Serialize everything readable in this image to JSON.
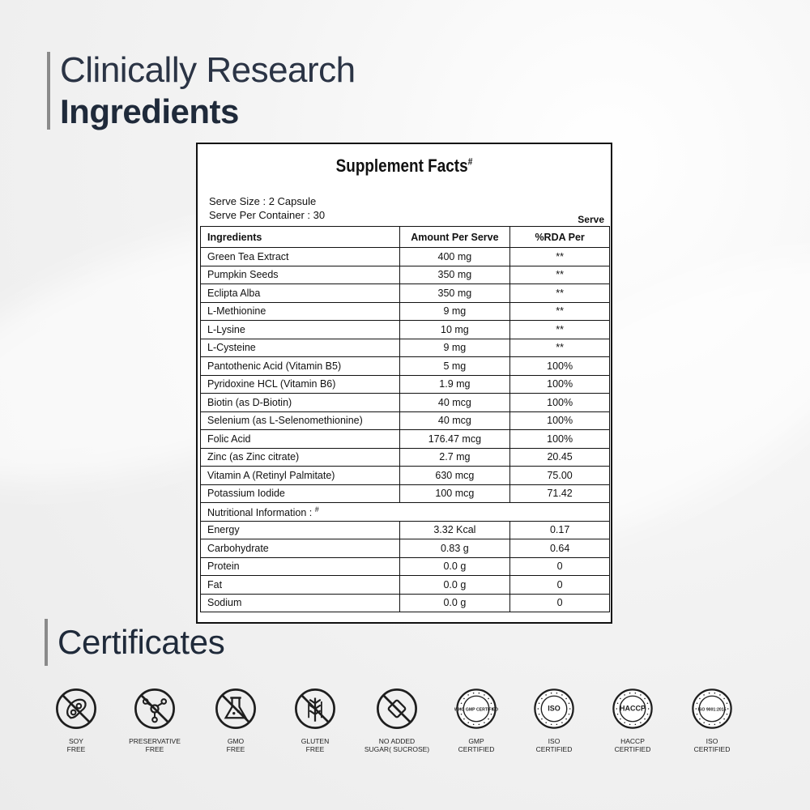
{
  "heading": {
    "line1": "Clinically Research",
    "line2": "Ingredients"
  },
  "supplement_facts": {
    "title": "Supplement Facts",
    "title_mark": "#",
    "serve_size": "Serve Size : 2 Capsule",
    "serve_per_container": "Serve Per Container : 30",
    "columns": [
      "Ingredients",
      "Amount Per Serve",
      "%RDA Per",
      "Serve"
    ],
    "ingredients": [
      {
        "name": "Green Tea Extract",
        "amount": "400 mg",
        "rda": "**"
      },
      {
        "name": "Pumpkin Seeds",
        "amount": "350 mg",
        "rda": "**"
      },
      {
        "name": "Eclipta Alba",
        "amount": "350 mg",
        "rda": "**"
      },
      {
        "name": "L-Methionine",
        "amount": "9 mg",
        "rda": "**"
      },
      {
        "name": "L-Lysine",
        "amount": "10 mg",
        "rda": "**"
      },
      {
        "name": "L-Cysteine",
        "amount": "9 mg",
        "rda": "**"
      },
      {
        "name": "Pantothenic Acid (Vitamin B5)",
        "amount": "5 mg",
        "rda": "100%"
      },
      {
        "name": "Pyridoxine HCL (Vitamin B6)",
        "amount": "1.9 mg",
        "rda": "100%"
      },
      {
        "name": "Biotin (as D-Biotin)",
        "amount": "40 mcg",
        "rda": "100%"
      },
      {
        "name": "Selenium (as L-Selenomethionine)",
        "amount": "40 mcg",
        "rda": "100%"
      },
      {
        "name": "Folic Acid",
        "amount": "176.47 mcg",
        "rda": "100%"
      },
      {
        "name": "Zinc (as Zinc citrate)",
        "amount": "2.7 mg",
        "rda": "20.45"
      },
      {
        "name": "Vitamin A (Retinyl Palmitate)",
        "amount": "630 mcg",
        "rda": "75.00"
      },
      {
        "name": "Potassium Iodide",
        "amount": "100 mcg",
        "rda": "71.42"
      }
    ],
    "nutrition_heading": "Nutritional Information :",
    "nutrition_mark": "#",
    "nutrition": [
      {
        "name": "Energy",
        "amount": "3.32 Kcal",
        "rda": "0.17"
      },
      {
        "name": "Carbohydrate",
        "amount": "0.83 g",
        "rda": "0.64"
      },
      {
        "name": "Protein",
        "amount": "0.0 g",
        "rda": "0"
      },
      {
        "name": "Fat",
        "amount": "0.0 g",
        "rda": "0"
      },
      {
        "name": "Sodium",
        "amount": "0.0 g",
        "rda": "0"
      }
    ]
  },
  "certificates": {
    "heading": "Certificates",
    "badges": [
      {
        "icon": "soy-free-icon",
        "label": "SOY\nFREE"
      },
      {
        "icon": "preservative-free-icon",
        "label": "PRESERVATIVE\nFREE"
      },
      {
        "icon": "gmo-free-icon",
        "label": "GMO\nFREE"
      },
      {
        "icon": "gluten-free-icon",
        "label": "GLUTEN\nFREE"
      },
      {
        "icon": "no-added-sugar-icon",
        "label": "NO ADDED\nSUGAR( SUCROSE)"
      },
      {
        "icon": "gmp-seal-icon",
        "label": "GMP\nCERTIFIED",
        "seal_text": "WHO GMP CERTIFIED"
      },
      {
        "icon": "iso-food-safety-seal-icon",
        "label": "ISO\nCERTIFIED",
        "seal_text": "ISO"
      },
      {
        "icon": "haccp-seal-icon",
        "label": "HACCP\nCERTIFIED",
        "seal_text": "HACCP"
      },
      {
        "icon": "iso-9001-seal-icon",
        "label": "ISO\nCERTIFIED",
        "seal_text": "ISO 9001:2015"
      }
    ]
  }
}
